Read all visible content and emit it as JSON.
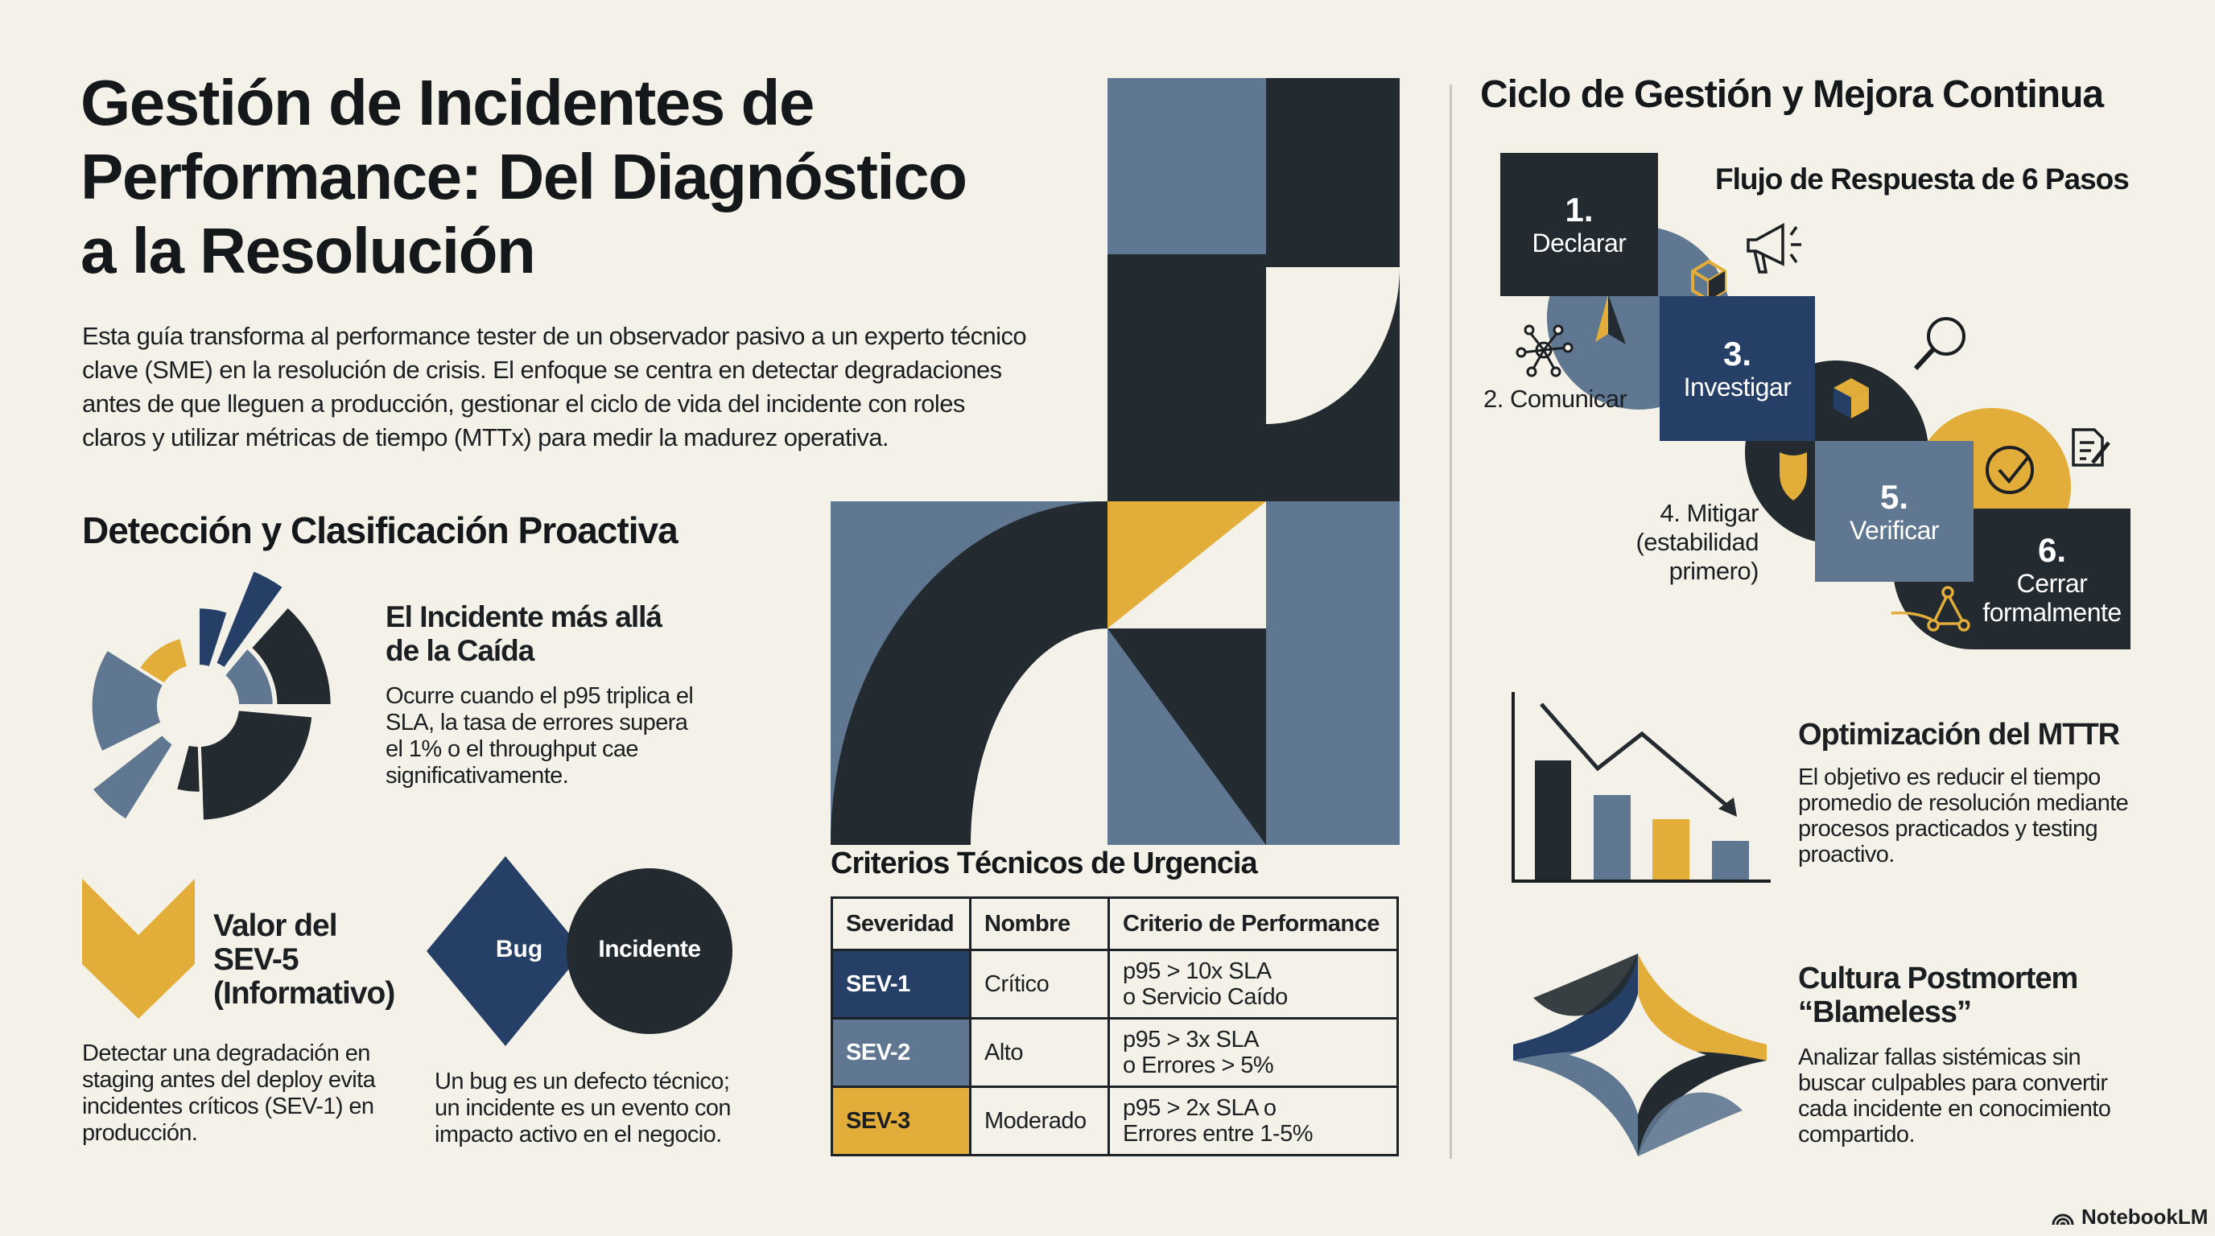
{
  "title": [
    "Gestión de Incidentes de",
    "Performance: Del Diagnóstico",
    "a la Resolución"
  ],
  "intro": [
    "Esta guía transforma al performance tester de un observador pasivo a un experto técnico",
    "clave (SME) en la resolución de crisis. El enfoque se centra en detectar degradaciones",
    "antes de que lleguen a producción, gestionar el ciclo de vida del incidente con roles",
    "claros y utilizar métricas de tiempo (MTTx) para medir la madurez operativa."
  ],
  "detection": {
    "heading": "Detección y Clasificación Proactiva",
    "incident": {
      "title": [
        "El Incidente más allá",
        "de la Caída"
      ],
      "body": [
        "Ocurre cuando el p95 triplica el",
        "SLA, la tasa de errores supera",
        "el 1% o el throughput cae",
        "significativamente."
      ]
    },
    "sev5": {
      "title": [
        "Valor del",
        "SEV-5",
        "(Informativo)"
      ],
      "body": [
        "Detectar una degradación en",
        "staging antes del deploy evita",
        "incidentes críticos (SEV-1) en",
        "producción."
      ]
    },
    "bug_vs_incident": {
      "bug_label": "Bug",
      "incident_label": "Incidente",
      "body": [
        "Un bug es un defecto técnico;",
        "un incidente es un evento con",
        "impacto activo en el negocio."
      ]
    }
  },
  "urgency": {
    "heading": "Criterios Técnicos de Urgencia",
    "columns": [
      "Severidad",
      "Nombre",
      "Criterio de Performance"
    ],
    "rows": [
      {
        "severity": "SEV-1",
        "name": "Crítico",
        "criteria": [
          "p95 > 10x SLA",
          "o Servicio Caído"
        ],
        "color": "#253f66"
      },
      {
        "severity": "SEV-2",
        "name": "Alto",
        "criteria": [
          "p95 > 3x SLA",
          "o Errores > 5%"
        ],
        "color": "#5f7790"
      },
      {
        "severity": "SEV-3",
        "name": "Moderado",
        "criteria": [
          "p95 > 2x SLA o",
          "Errores entre 1-5%"
        ],
        "color": "#e3ad3a"
      }
    ]
  },
  "cycle": {
    "heading": "Ciclo de Gestión y Mejora Continua",
    "flow_title": "Flujo de Respuesta de 6 Pasos",
    "steps": [
      {
        "number": "1.",
        "label": "Declarar"
      },
      {
        "label": "2. Comunicar"
      },
      {
        "number": "3.",
        "label": "Investigar"
      },
      {
        "label": [
          "4. Mitigar",
          "(estabilidad",
          "primero)"
        ]
      },
      {
        "number": "5.",
        "label": "Verificar"
      },
      {
        "number": "6.",
        "label": [
          "Cerrar",
          "formalmente"
        ]
      }
    ]
  },
  "mttr": {
    "title": "Optimización del MTTR",
    "body": [
      "El objetivo es reducir el tiempo",
      "promedio de resolución mediante",
      "procesos practicados y testing",
      "proactivo."
    ]
  },
  "postmortem": {
    "title": [
      "Cultura Postmortem",
      "“Blameless”"
    ],
    "body": [
      "Analizar fallas sistémicas sin",
      "buscar culpables para convertir",
      "cada incidente en conocimiento",
      "compartido."
    ]
  },
  "brand": "NotebookLM",
  "colors": {
    "background": "#f3f1e8",
    "dark": "#232b30",
    "navy": "#253f66",
    "slate": "#5f7790",
    "yellow": "#e3ad3a"
  }
}
